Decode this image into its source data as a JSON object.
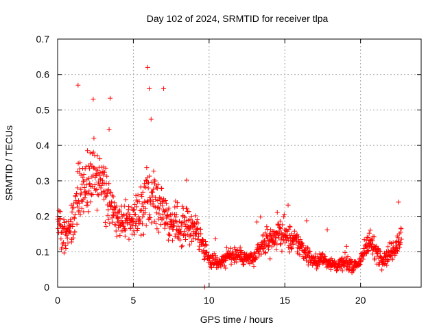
{
  "chart_data": {
    "type": "scatter",
    "title": "Day 102 of 2024, SRMTID for receiver tlpa",
    "xlabel": "GPS time / hours",
    "ylabel": "SRMTID / TECUs",
    "xlim": [
      0,
      24
    ],
    "ylim": [
      0,
      0.7
    ],
    "xticks": [
      "0",
      "5",
      "10",
      "15",
      "20"
    ],
    "xtick_values": [
      0,
      5,
      10,
      15,
      20
    ],
    "yticks": [
      "0",
      "0.1",
      "0.2",
      "0.3",
      "0.4",
      "0.5",
      "0.6",
      "0.7"
    ],
    "ytick_values": [
      0,
      0.1,
      0.2,
      0.3,
      0.4,
      0.5,
      0.6,
      0.7
    ],
    "grid": true,
    "marker": "+",
    "series": [
      {
        "name": "SRMTID",
        "color": "#ff0000",
        "x_range": [
          0,
          22.7
        ],
        "sampling_interval_hours": 0.017,
        "trend_points": [
          {
            "x": 0.0,
            "y": 0.19
          },
          {
            "x": 0.5,
            "y": 0.15
          },
          {
            "x": 1.0,
            "y": 0.18
          },
          {
            "x": 1.5,
            "y": 0.27
          },
          {
            "x": 2.0,
            "y": 0.3
          },
          {
            "x": 2.5,
            "y": 0.31
          },
          {
            "x": 3.0,
            "y": 0.28
          },
          {
            "x": 3.5,
            "y": 0.24
          },
          {
            "x": 4.0,
            "y": 0.2
          },
          {
            "x": 4.5,
            "y": 0.18
          },
          {
            "x": 5.0,
            "y": 0.19
          },
          {
            "x": 5.5,
            "y": 0.22
          },
          {
            "x": 6.0,
            "y": 0.26
          },
          {
            "x": 6.5,
            "y": 0.25
          },
          {
            "x": 7.0,
            "y": 0.23
          },
          {
            "x": 7.5,
            "y": 0.18
          },
          {
            "x": 8.0,
            "y": 0.17
          },
          {
            "x": 8.5,
            "y": 0.18
          },
          {
            "x": 9.0,
            "y": 0.17
          },
          {
            "x": 9.5,
            "y": 0.13
          },
          {
            "x": 10.0,
            "y": 0.08
          },
          {
            "x": 10.5,
            "y": 0.07
          },
          {
            "x": 11.0,
            "y": 0.08
          },
          {
            "x": 11.5,
            "y": 0.09
          },
          {
            "x": 12.0,
            "y": 0.09
          },
          {
            "x": 12.5,
            "y": 0.08
          },
          {
            "x": 13.0,
            "y": 0.08
          },
          {
            "x": 13.5,
            "y": 0.12
          },
          {
            "x": 14.0,
            "y": 0.13
          },
          {
            "x": 14.5,
            "y": 0.15
          },
          {
            "x": 15.0,
            "y": 0.15
          },
          {
            "x": 15.5,
            "y": 0.13
          },
          {
            "x": 16.0,
            "y": 0.12
          },
          {
            "x": 16.5,
            "y": 0.09
          },
          {
            "x": 17.0,
            "y": 0.07
          },
          {
            "x": 17.5,
            "y": 0.08
          },
          {
            "x": 18.0,
            "y": 0.07
          },
          {
            "x": 18.5,
            "y": 0.06
          },
          {
            "x": 19.0,
            "y": 0.07
          },
          {
            "x": 19.5,
            "y": 0.06
          },
          {
            "x": 20.0,
            "y": 0.07
          },
          {
            "x": 20.5,
            "y": 0.14
          },
          {
            "x": 21.0,
            "y": 0.1
          },
          {
            "x": 21.5,
            "y": 0.08
          },
          {
            "x": 22.0,
            "y": 0.1
          },
          {
            "x": 22.7,
            "y": 0.14
          }
        ],
        "notable_points": [
          {
            "x": 5.95,
            "y": 0.62
          },
          {
            "x": 1.35,
            "y": 0.57
          },
          {
            "x": 2.35,
            "y": 0.53
          },
          {
            "x": 7.0,
            "y": 0.56
          },
          {
            "x": 6.05,
            "y": 0.56
          },
          {
            "x": 22.5,
            "y": 0.24
          },
          {
            "x": 9.7,
            "y": 0.0
          }
        ]
      }
    ]
  }
}
